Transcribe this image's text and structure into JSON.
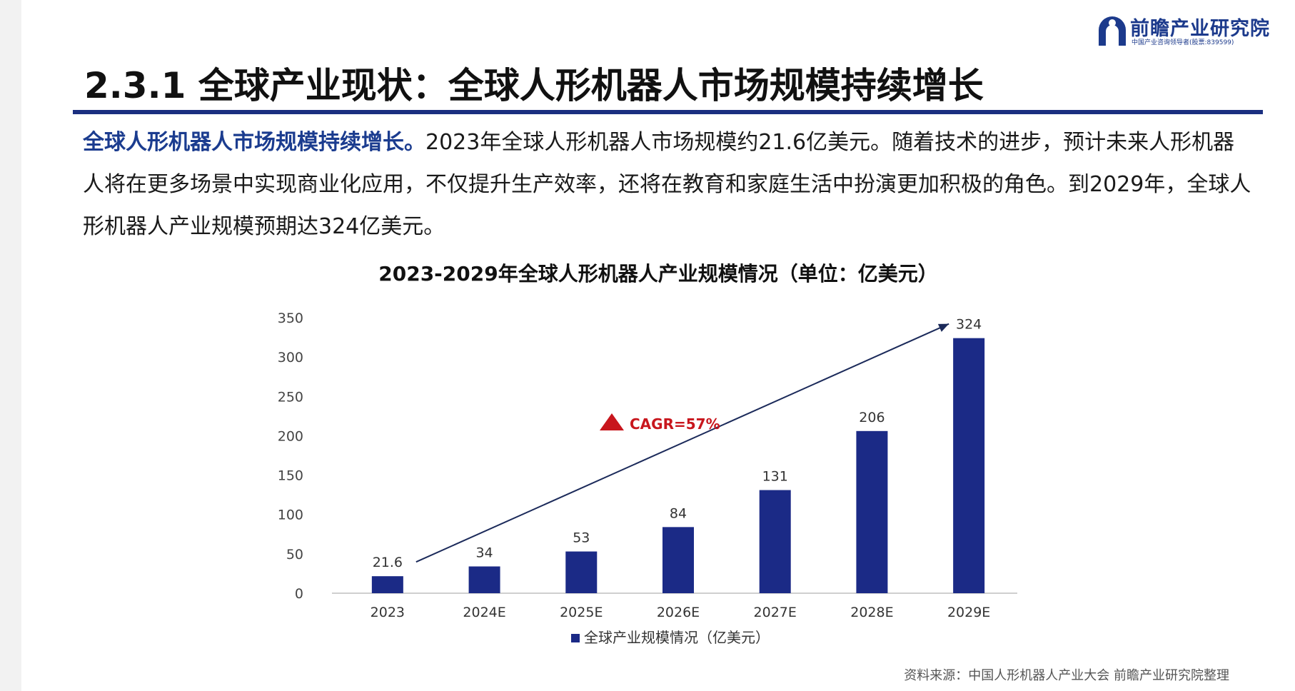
{
  "logo": {
    "name": "前瞻产业研究院",
    "subtitle": "中国产业咨询领导者(股票:839599)"
  },
  "page": {
    "title": "2.3.1 全球产业现状：全球人形机器人市场规模持续增长"
  },
  "intro": {
    "lead": "全球人形机器人市场规模持续增长。",
    "body": "2023年全球人形机器人市场规模约21.6亿美元。随着技术的进步，预计未来人形机器人将在更多场景中实现商业化应用，不仅提升生产效率，还将在教育和家庭生活中扮演更加积极的角色。到2029年，全球人形机器人产业规模预期达324亿美元。"
  },
  "chart_data": {
    "type": "bar",
    "title": "2023-2029年全球人形机器人产业规模情况（单位：亿美元）",
    "categories": [
      "2023",
      "2024E",
      "2025E",
      "2026E",
      "2027E",
      "2028E",
      "2029E"
    ],
    "series": [
      {
        "name": "全球产业规模情况（亿美元）",
        "values": [
          21.6,
          34,
          53,
          84,
          131,
          206,
          324
        ],
        "labels": [
          "21.6",
          "34",
          "53",
          "84",
          "131",
          "206",
          "324"
        ]
      }
    ],
    "yticks": [
      "0",
      "50",
      "100",
      "150",
      "200",
      "250",
      "300",
      "350"
    ],
    "ylim": [
      0,
      350
    ],
    "grid": false,
    "legend_position": "bottom",
    "annotation": "CAGR=57%",
    "bar_color": "#1b2a86",
    "annotation_color": "#c8161d"
  },
  "source": {
    "text": "资料来源：中国人形机器人产业大会 前瞻产业研究院整理"
  }
}
